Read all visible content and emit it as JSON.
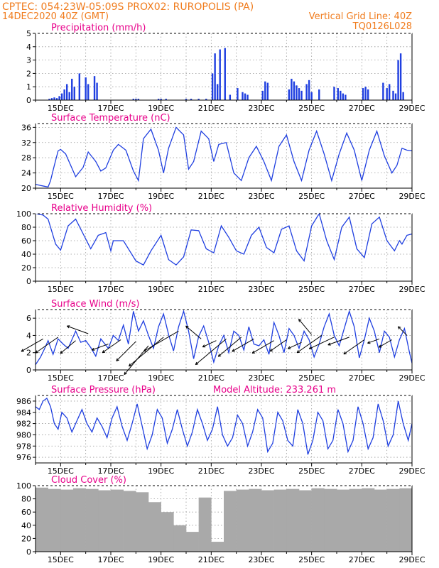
{
  "header": {
    "line1_left": "CPTEC:   054:23W-05:09S   PROX02: RUROPOLIS (PA)",
    "line2_left": "14DEC2020 40Z (GMT)",
    "line2_right": "Vertical Grid Line: 40Z",
    "line3_right": "TQ0126L028",
    "color": "#f07c1e"
  },
  "colors": {
    "title": "#e8008a",
    "series": "#1f3fe0",
    "cloud": "#a9a9a9",
    "grid": "#9a9a9a"
  },
  "chart_data": [
    {
      "id": "precip",
      "type": "bar",
      "title": "Precipitation (mm/h)",
      "x_tick_labels": [
        "15DEC",
        "17DEC",
        "19DEC",
        "21DEC",
        "23DEC",
        "25DEC",
        "27DEC",
        "29DEC"
      ],
      "xlim": [
        0,
        15
      ],
      "ylim": [
        0,
        5
      ],
      "yticks": [
        0,
        1,
        2,
        3,
        4,
        5
      ],
      "x": [
        0.55,
        0.65,
        0.75,
        0.85,
        0.95,
        1.05,
        1.15,
        1.25,
        1.35,
        1.45,
        1.55,
        1.75,
        2.0,
        2.1,
        2.35,
        2.45,
        3.9,
        4.0,
        4.1,
        4.9,
        5.0,
        5.2,
        6.0,
        6.2,
        6.5,
        6.8,
        7.05,
        7.15,
        7.25,
        7.35,
        7.55,
        7.75,
        8.05,
        8.25,
        8.35,
        8.45,
        9.05,
        9.15,
        9.25,
        10.1,
        10.2,
        10.3,
        10.4,
        10.5,
        10.6,
        10.8,
        10.9,
        11.0,
        11.3,
        11.9,
        12.05,
        12.15,
        12.25,
        12.35,
        13.05,
        13.15,
        13.25,
        13.85,
        14.0,
        14.1,
        14.25,
        14.35,
        14.45,
        14.55,
        14.65
      ],
      "values": [
        0.1,
        0.15,
        0.2,
        0.15,
        0.3,
        0.5,
        0.8,
        1.2,
        0.6,
        1.6,
        1.0,
        2.0,
        1.7,
        1.2,
        1.8,
        1.3,
        0.1,
        0.1,
        0.1,
        0.1,
        0.1,
        0.1,
        0.1,
        0.1,
        0.1,
        0.1,
        2.0,
        3.5,
        1.2,
        3.8,
        3.9,
        0.4,
        0.9,
        0.6,
        0.5,
        0.4,
        0.7,
        1.4,
        1.3,
        0.8,
        1.6,
        1.4,
        1.1,
        0.9,
        0.7,
        1.2,
        1.5,
        0.6,
        0.8,
        1.0,
        0.9,
        0.7,
        0.5,
        0.4,
        0.9,
        1.0,
        0.8,
        1.3,
        0.9,
        1.2,
        0.7,
        0.5,
        3.0,
        3.5,
        0.6
      ]
    },
    {
      "id": "temp",
      "type": "line",
      "title": "Surface Temperature (nC)",
      "x_tick_labels": [
        "15DEC",
        "17DEC",
        "19DEC",
        "21DEC",
        "23DEC",
        "25DEC",
        "27DEC",
        "29DEC"
      ],
      "xlim": [
        0,
        15
      ],
      "ylim": [
        20,
        37
      ],
      "yticks": [
        20,
        24,
        28,
        32,
        36
      ],
      "x": [
        0,
        0.2,
        0.35,
        0.5,
        0.6,
        0.75,
        0.9,
        1.0,
        1.2,
        1.4,
        1.6,
        1.9,
        2.1,
        2.4,
        2.6,
        2.8,
        3.1,
        3.3,
        3.6,
        3.9,
        4.1,
        4.3,
        4.6,
        4.9,
        5.1,
        5.3,
        5.6,
        5.9,
        6.1,
        6.3,
        6.6,
        6.9,
        7.1,
        7.3,
        7.6,
        7.9,
        8.2,
        8.5,
        8.8,
        9.1,
        9.4,
        9.7,
        10.0,
        10.3,
        10.6,
        10.9,
        11.2,
        11.5,
        11.8,
        12.1,
        12.4,
        12.7,
        13.0,
        13.3,
        13.6,
        13.9,
        14.2,
        14.4,
        14.6,
        14.8,
        15.0
      ],
      "values": [
        21,
        20.7,
        20.5,
        20.3,
        22,
        26,
        29.8,
        30.2,
        29,
        26,
        23,
        25.5,
        29.5,
        27,
        24.5,
        25.3,
        30,
        31.5,
        30,
        24.5,
        22,
        33,
        35.5,
        30,
        24,
        30.5,
        36,
        34,
        25,
        27,
        35,
        33,
        27,
        31.5,
        32,
        24,
        22,
        28,
        31,
        27,
        22,
        31,
        34,
        27,
        22,
        30,
        35,
        29,
        22,
        29,
        34.5,
        30,
        22,
        30,
        35,
        28.5,
        24,
        26,
        30.5,
        30,
        29.8
      ]
    },
    {
      "id": "rh",
      "type": "line",
      "title": "Relative Humidity (%)",
      "x_tick_labels": [
        "15DEC",
        "17DEC",
        "19DEC",
        "21DEC",
        "23DEC",
        "25DEC",
        "27DEC",
        "29DEC"
      ],
      "xlim": [
        0,
        15
      ],
      "ylim": [
        0,
        100
      ],
      "yticks": [
        0,
        20,
        40,
        60,
        80,
        100
      ],
      "x": [
        0,
        0.3,
        0.5,
        0.8,
        1.0,
        1.3,
        1.6,
        1.9,
        2.2,
        2.5,
        2.8,
        3.0,
        3.1,
        3.5,
        4.0,
        4.3,
        4.6,
        5.0,
        5.3,
        5.6,
        5.9,
        6.2,
        6.5,
        6.8,
        7.1,
        7.4,
        7.7,
        8.0,
        8.3,
        8.6,
        8.9,
        9.2,
        9.5,
        9.8,
        10.1,
        10.4,
        10.7,
        11.0,
        11.3,
        11.6,
        11.9,
        12.2,
        12.5,
        12.8,
        13.1,
        13.4,
        13.7,
        14.0,
        14.3,
        14.5,
        14.6,
        14.8,
        15.0
      ],
      "values": [
        100,
        98,
        92,
        55,
        46,
        82,
        92,
        70,
        48,
        68,
        72,
        45,
        60,
        60,
        30,
        24,
        45,
        68,
        32,
        24,
        36,
        76,
        75,
        48,
        42,
        82,
        65,
        45,
        40,
        68,
        80,
        50,
        42,
        77,
        82,
        45,
        30,
        82,
        100,
        60,
        32,
        80,
        95,
        48,
        35,
        85,
        95,
        60,
        45,
        60,
        55,
        68,
        70
      ]
    },
    {
      "id": "wind",
      "type": "line",
      "title": "Surface Wind (m/s)",
      "x_tick_labels": [
        "15DEC",
        "17DEC",
        "19DEC",
        "21DEC",
        "23DEC",
        "25DEC",
        "27DEC",
        "29DEC"
      ],
      "xlim": [
        0,
        15
      ],
      "ylim": [
        0,
        7
      ],
      "yticks": [
        0,
        2,
        4,
        6
      ],
      "x": [
        0,
        0.2,
        0.35,
        0.5,
        0.7,
        0.9,
        1.1,
        1.3,
        1.6,
        1.8,
        2.0,
        2.2,
        2.4,
        2.6,
        2.9,
        3.1,
        3.3,
        3.5,
        3.7,
        3.9,
        4.1,
        4.3,
        4.5,
        4.7,
        4.9,
        5.1,
        5.3,
        5.5,
        5.7,
        5.9,
        6.1,
        6.3,
        6.5,
        6.7,
        6.9,
        7.1,
        7.3,
        7.5,
        7.7,
        7.9,
        8.1,
        8.3,
        8.5,
        8.7,
        8.9,
        9.1,
        9.3,
        9.5,
        9.7,
        9.9,
        10.1,
        10.3,
        10.5,
        10.7,
        10.9,
        11.1,
        11.3,
        11.5,
        11.7,
        11.9,
        12.1,
        12.3,
        12.5,
        12.7,
        12.9,
        13.1,
        13.3,
        13.5,
        13.7,
        13.9,
        14.1,
        14.3,
        14.5,
        14.7,
        14.9,
        15.0
      ],
      "values": [
        0.6,
        1.5,
        2.4,
        3.4,
        1.8,
        3.6,
        3.0,
        2.5,
        4.5,
        3.2,
        3.4,
        2.6,
        1.6,
        3.6,
        2.5,
        4.0,
        3.4,
        5.2,
        3.0,
        6.8,
        4.5,
        5.7,
        4.0,
        2.5,
        5.0,
        6.5,
        4.1,
        2.2,
        5.0,
        6.8,
        4.5,
        1.3,
        3.9,
        5.1,
        3.2,
        0.9,
        2.8,
        4.0,
        2.0,
        4.5,
        4.0,
        2.3,
        5.0,
        3.0,
        2.8,
        3.5,
        1.8,
        5.5,
        4.0,
        2.0,
        4.8,
        4.0,
        2.5,
        4.5,
        3.5,
        1.5,
        3.0,
        5.0,
        6.5,
        4.0,
        2.8,
        4.8,
        6.8,
        5.0,
        1.4,
        3.5,
        6.0,
        4.5,
        2.0,
        4.5,
        3.8,
        1.5,
        3.5,
        4.8,
        2.0,
        0.8
      ]
    },
    {
      "id": "pressure",
      "type": "line",
      "title": "Surface Pressure (hPa)",
      "annotation": "Model Altitude: 233.261  m",
      "x_tick_labels": [
        "15DEC",
        "17DEC",
        "19DEC",
        "21DEC",
        "23DEC",
        "25DEC",
        "27DEC",
        "29DEC"
      ],
      "xlim": [
        0,
        15
      ],
      "ylim": [
        975,
        987
      ],
      "yticks": [
        976,
        978,
        980,
        982,
        984,
        986
      ],
      "x": [
        0,
        0.15,
        0.3,
        0.45,
        0.6,
        0.75,
        0.9,
        1.05,
        1.25,
        1.45,
        1.65,
        1.85,
        2.05,
        2.25,
        2.45,
        2.65,
        2.85,
        3.05,
        3.25,
        3.45,
        3.65,
        3.85,
        4.05,
        4.25,
        4.45,
        4.65,
        4.85,
        5.05,
        5.25,
        5.45,
        5.65,
        5.85,
        6.05,
        6.25,
        6.45,
        6.65,
        6.85,
        7.05,
        7.25,
        7.45,
        7.65,
        7.85,
        8.05,
        8.25,
        8.45,
        8.65,
        8.85,
        9.05,
        9.25,
        9.45,
        9.65,
        9.85,
        10.05,
        10.25,
        10.45,
        10.65,
        10.85,
        11.05,
        11.25,
        11.45,
        11.65,
        11.85,
        12.05,
        12.25,
        12.45,
        12.65,
        12.85,
        13.05,
        13.25,
        13.45,
        13.65,
        13.85,
        14.05,
        14.25,
        14.45,
        14.65,
        14.85,
        15.0
      ],
      "values": [
        985,
        984.5,
        986,
        986.5,
        985,
        982,
        981,
        984,
        983,
        980.5,
        982.5,
        984.5,
        982,
        980.5,
        983,
        981.5,
        979.5,
        983,
        985,
        981.5,
        979,
        982,
        985.5,
        981.5,
        977.5,
        980,
        984.5,
        983,
        978.5,
        981,
        984.5,
        981,
        978,
        980.5,
        984.5,
        982,
        979,
        981,
        985,
        980,
        978,
        979.5,
        983.5,
        982,
        978,
        980.5,
        984.5,
        983,
        977,
        978.5,
        984,
        982.5,
        979,
        978,
        984.5,
        982,
        976.5,
        979,
        984,
        982.5,
        977.5,
        979,
        984.5,
        982,
        977,
        979,
        985,
        982,
        977.5,
        979.5,
        985.5,
        982.5,
        978,
        980,
        986,
        982,
        979,
        982
      ]
    },
    {
      "id": "cloud",
      "type": "bar",
      "title": "Cloud Cover (%)",
      "x_tick_labels": [
        "15DEC",
        "17DEC",
        "19DEC",
        "21DEC",
        "23DEC",
        "25DEC",
        "27DEC",
        "29DEC"
      ],
      "xlim": [
        0,
        15
      ],
      "ylim": [
        0,
        100
      ],
      "yticks": [
        0,
        20,
        40,
        60,
        80,
        100
      ],
      "x": [
        0.25,
        0.75,
        1.25,
        1.75,
        2.25,
        2.75,
        3.25,
        3.75,
        4.25,
        4.75,
        5.25,
        5.75,
        6.25,
        6.75,
        7.25,
        7.75,
        8.25,
        8.75,
        9.25,
        9.75,
        10.25,
        10.75,
        11.25,
        11.75,
        12.25,
        12.75,
        13.25,
        13.75,
        14.25,
        14.75
      ],
      "values": [
        97,
        95,
        94,
        96,
        95,
        93,
        94,
        92,
        90,
        75,
        60,
        40,
        30,
        82,
        15,
        92,
        94,
        95,
        93,
        94,
        95,
        93,
        96,
        95,
        94,
        95,
        96,
        94,
        95,
        96
      ]
    }
  ],
  "wind_arrows": [
    {
      "x": 0.3,
      "y": 3.6,
      "angle": 210,
      "len": 1.0
    },
    {
      "x": 0.9,
      "y": 3.8,
      "angle": 215,
      "len": 1.1
    },
    {
      "x": 1.6,
      "y": 3.4,
      "angle": 220,
      "len": 0.8
    },
    {
      "x": 2.1,
      "y": 4.2,
      "angle": 160,
      "len": 0.9
    },
    {
      "x": 2.9,
      "y": 3.0,
      "angle": 200,
      "len": 0.7
    },
    {
      "x": 3.4,
      "y": 3.5,
      "angle": 215,
      "len": 0.9
    },
    {
      "x": 4.0,
      "y": 3.3,
      "angle": 225,
      "len": 1.1
    },
    {
      "x": 4.5,
      "y": 2.8,
      "angle": 230,
      "len": 1.5
    },
    {
      "x": 5.1,
      "y": 3.8,
      "angle": 220,
      "len": 1.8
    },
    {
      "x": 5.7,
      "y": 4.5,
      "angle": 210,
      "len": 1.6
    },
    {
      "x": 6.6,
      "y": 3.6,
      "angle": 140,
      "len": 0.8
    },
    {
      "x": 7.2,
      "y": 3.4,
      "angle": 205,
      "len": 0.6
    },
    {
      "x": 7.6,
      "y": 3.6,
      "angle": 220,
      "len": 1.6
    },
    {
      "x": 8.2,
      "y": 3.8,
      "angle": 220,
      "len": 1.2
    },
    {
      "x": 8.7,
      "y": 3.6,
      "angle": 210,
      "len": 1.0
    },
    {
      "x": 9.5,
      "y": 3.4,
      "angle": 210,
      "len": 1.0
    },
    {
      "x": 10.0,
      "y": 3.5,
      "angle": 215,
      "len": 0.8
    },
    {
      "x": 10.6,
      "y": 3.2,
      "angle": 205,
      "len": 0.6
    },
    {
      "x": 11.0,
      "y": 4.1,
      "angle": 130,
      "len": 0.8
    },
    {
      "x": 11.4,
      "y": 4.0,
      "angle": 215,
      "len": 1.2
    },
    {
      "x": 11.9,
      "y": 3.8,
      "angle": 205,
      "len": 1.1
    },
    {
      "x": 12.5,
      "y": 3.8,
      "angle": 200,
      "len": 0.9
    },
    {
      "x": 13.1,
      "y": 3.5,
      "angle": 215,
      "len": 1.0
    },
    {
      "x": 13.7,
      "y": 3.6,
      "angle": 200,
      "len": 0.5
    },
    {
      "x": 14.2,
      "y": 3.5,
      "angle": 210,
      "len": 0.6
    },
    {
      "x": 14.8,
      "y": 4.0,
      "angle": 135,
      "len": 0.5
    }
  ]
}
